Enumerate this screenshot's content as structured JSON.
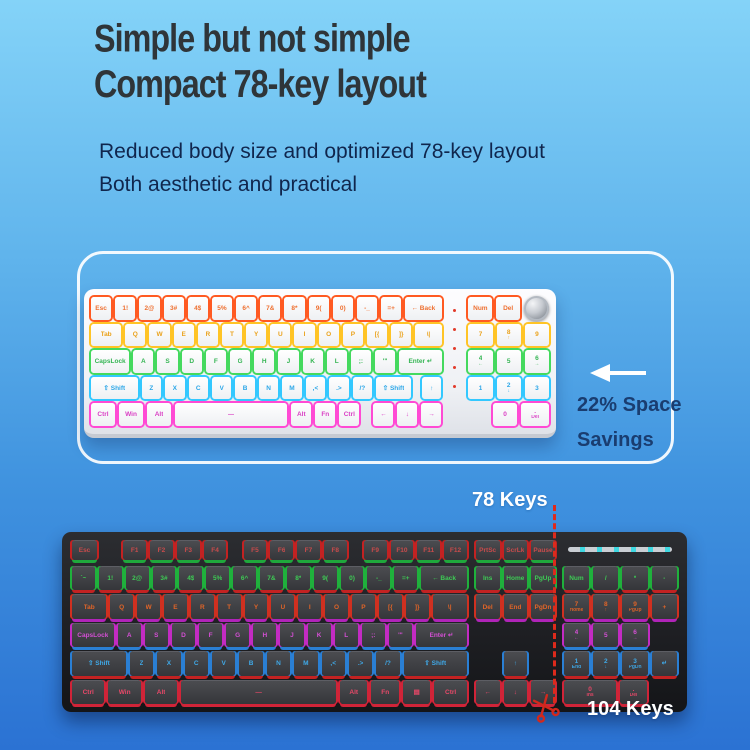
{
  "header": {
    "title_line1": "Simple but not simple",
    "title_line2": "Compact 78-key layout",
    "subtitle_line1": "Reduced body size and optimized 78-key layout",
    "subtitle_line2": "Both aesthetic and practical"
  },
  "panel": {
    "savings_line1": "22% Space",
    "savings_line2": "Savings",
    "arrow_color": "#ffffff"
  },
  "labels": {
    "keys78": "78 Keys",
    "keys104": "104 Keys",
    "cut_line_color": "#dd2a1c"
  },
  "white_keyboard": {
    "description": "compact 78-key white RGB keyboard",
    "blocks": [
      {
        "w": 14.8,
        "rows": [
          {
            "ring": "#ff5a22",
            "legend": "#ef7030",
            "keys": [
              {
                "t": "Esc"
              },
              {
                "t": "1!"
              },
              {
                "t": "2@"
              },
              {
                "t": "3#"
              },
              {
                "t": "4$"
              },
              {
                "t": "5%"
              },
              {
                "t": "6^"
              },
              {
                "t": "7&"
              },
              {
                "t": "8*"
              },
              {
                "t": "9("
              },
              {
                "t": "0)"
              },
              {
                "t": "-_"
              },
              {
                "t": "=+"
              },
              {
                "t": "← Back",
                "w": 1.8
              }
            ]
          },
          {
            "ring": "#ffc426",
            "legend": "#eaa21c",
            "keys": [
              {
                "t": "Tab",
                "w": 1.5
              },
              {
                "t": "Q"
              },
              {
                "t": "W"
              },
              {
                "t": "E"
              },
              {
                "t": "R"
              },
              {
                "t": "T"
              },
              {
                "t": "Y"
              },
              {
                "t": "U"
              },
              {
                "t": "I"
              },
              {
                "t": "O"
              },
              {
                "t": "P"
              },
              {
                "t": "[{"
              },
              {
                "t": "]}"
              },
              {
                "t": "\\|",
                "w": 1.3
              }
            ]
          },
          {
            "ring": "#44d95e",
            "legend": "#35b554",
            "keys": [
              {
                "t": "CapsLock",
                "w": 1.9
              },
              {
                "t": "A"
              },
              {
                "t": "S"
              },
              {
                "t": "D"
              },
              {
                "t": "F"
              },
              {
                "t": "G"
              },
              {
                "t": "H"
              },
              {
                "t": "J"
              },
              {
                "t": "K"
              },
              {
                "t": "L"
              },
              {
                "t": ";:"
              },
              {
                "t": "'\""
              },
              {
                "t": "Enter ↵",
                "w": 2.1
              }
            ]
          },
          {
            "ring": "#33c8ff",
            "legend": "#2da7e8",
            "keys": [
              {
                "t": "⇧ Shift",
                "w": 2.4
              },
              {
                "t": "Z"
              },
              {
                "t": "X"
              },
              {
                "t": "C"
              },
              {
                "t": "V"
              },
              {
                "t": "B"
              },
              {
                "t": "N"
              },
              {
                "t": "M"
              },
              {
                "t": ",<"
              },
              {
                "t": ".>"
              },
              {
                "t": "/?"
              },
              {
                "t": "⇧ Shift",
                "w": 1.8
              },
              {
                "sp": true,
                "w": 0.15
              },
              {
                "t": "↑"
              }
            ]
          },
          {
            "ring": "#ff4ad4",
            "legend": "#d93fc4",
            "keys": [
              {
                "t": "Ctrl",
                "w": 1.2
              },
              {
                "t": "Win",
                "w": 1.2
              },
              {
                "t": "Alt",
                "w": 1.2
              },
              {
                "t": "—",
                "w": 5.6
              },
              {
                "t": "Alt"
              },
              {
                "t": "Fn"
              },
              {
                "t": "Ctrl"
              },
              {
                "sp": true,
                "w": 0.3
              },
              {
                "t": "←"
              },
              {
                "t": "↓"
              },
              {
                "t": "→"
              }
            ]
          }
        ]
      },
      {
        "dots": true
      },
      {
        "w": 3.4,
        "rows": [
          {
            "ring": "#ff5a22",
            "legend": "#ef7030",
            "keys": [
              {
                "t": "Num"
              },
              {
                "t": "Del"
              },
              {
                "knob": true
              }
            ]
          },
          {
            "ring": "#ffc426",
            "legend": "#eaa21c",
            "keys": [
              {
                "t": "7"
              },
              {
                "t": "8",
                "s": "↑"
              },
              {
                "t": "9"
              }
            ]
          },
          {
            "ring": "#44d95e",
            "legend": "#35b554",
            "keys": [
              {
                "t": "4",
                "s": "←"
              },
              {
                "t": "5"
              },
              {
                "t": "6",
                "s": "→"
              }
            ]
          },
          {
            "ring": "#33c8ff",
            "legend": "#2da7e8",
            "keys": [
              {
                "t": "1"
              },
              {
                "t": "2",
                "s": "↓"
              },
              {
                "t": "3"
              }
            ]
          },
          {
            "ring": "#ff4ad4",
            "legend": "#d93fc4",
            "keys": [
              {
                "sp": true,
                "w": 0.85
              },
              {
                "t": "0"
              },
              {
                "t": ".",
                "s": "Del",
                "w": 1.15
              }
            ]
          }
        ]
      }
    ]
  },
  "black_keyboard": {
    "description": "full-size 104-key black RGB keyboard",
    "blocks": [
      {
        "w": 15,
        "rows": [
          {
            "fn": true,
            "side": "#c32222",
            "bottom": "#1fa83c",
            "legend": "#c94b4b",
            "keys": [
              {
                "t": "Esc",
                "w": 1.1
              },
              {
                "sp": true,
                "w": 0.8
              },
              {
                "t": "F1"
              },
              {
                "t": "F2"
              },
              {
                "t": "F3"
              },
              {
                "t": "F4"
              },
              {
                "sp": true,
                "w": 0.4
              },
              {
                "t": "F5"
              },
              {
                "t": "F6"
              },
              {
                "t": "F7"
              },
              {
                "t": "F8"
              },
              {
                "sp": true,
                "w": 0.4
              },
              {
                "t": "F9"
              },
              {
                "t": "F10"
              },
              {
                "t": "F11"
              },
              {
                "t": "F12"
              }
            ]
          },
          {
            "side": "#1fb13c",
            "bottom": "#c32222",
            "legend": "#3ecb55",
            "keys": [
              {
                "t": "`~"
              },
              {
                "t": "1!"
              },
              {
                "t": "2@"
              },
              {
                "t": "3#"
              },
              {
                "t": "4$"
              },
              {
                "t": "5%"
              },
              {
                "t": "6^"
              },
              {
                "t": "7&"
              },
              {
                "t": "8*"
              },
              {
                "t": "9("
              },
              {
                "t": "0)"
              },
              {
                "t": "-_"
              },
              {
                "t": "=+"
              },
              {
                "t": "← Back",
                "w": 2
              }
            ]
          },
          {
            "side": "#d03020",
            "bottom": "#b024b8",
            "legend": "#e06428",
            "keys": [
              {
                "t": "Tab",
                "w": 1.5
              },
              {
                "t": "Q"
              },
              {
                "t": "W"
              },
              {
                "t": "E"
              },
              {
                "t": "R"
              },
              {
                "t": "T"
              },
              {
                "t": "Y"
              },
              {
                "t": "U"
              },
              {
                "t": "I"
              },
              {
                "t": "O"
              },
              {
                "t": "P"
              },
              {
                "t": "[{"
              },
              {
                "t": "]}"
              },
              {
                "t": "\\|",
                "w": 1.5
              }
            ]
          },
          {
            "side": "#c32bc3",
            "bottom": "#2a7fd4",
            "legend": "#d44fd4",
            "keys": [
              {
                "t": "CapsLock",
                "w": 1.8
              },
              {
                "t": "A"
              },
              {
                "t": "S"
              },
              {
                "t": "D"
              },
              {
                "t": "F"
              },
              {
                "t": "G"
              },
              {
                "t": "H"
              },
              {
                "t": "J"
              },
              {
                "t": "K"
              },
              {
                "t": "L"
              },
              {
                "t": ";:"
              },
              {
                "t": "'\""
              },
              {
                "t": "Enter ↵",
                "w": 2.2
              }
            ]
          },
          {
            "side": "#2a7fd4",
            "bottom": "#c32222",
            "legend": "#3fa9e8",
            "keys": [
              {
                "t": "⇧ Shift",
                "w": 2.3
              },
              {
                "t": "Z"
              },
              {
                "t": "X"
              },
              {
                "t": "C"
              },
              {
                "t": "V"
              },
              {
                "t": "B"
              },
              {
                "t": "N"
              },
              {
                "t": "M"
              },
              {
                "t": ",<"
              },
              {
                "t": ".>"
              },
              {
                "t": "/?"
              },
              {
                "t": "⇧ Shift",
                "w": 2.7
              }
            ]
          },
          {
            "side": "#d02438",
            "bottom": "#d02438",
            "legend": "#e84868",
            "keys": [
              {
                "t": "Ctrl",
                "w": 1.3
              },
              {
                "t": "Win",
                "w": 1.3
              },
              {
                "t": "Alt",
                "w": 1.3
              },
              {
                "t": "—",
                "w": 6.2
              },
              {
                "t": "Alt",
                "w": 1.1
              },
              {
                "t": "Fn",
                "w": 1.1
              },
              {
                "t": "▤",
                "w": 1.1
              },
              {
                "t": "Ctrl",
                "w": 1.3
              }
            ]
          }
        ]
      },
      {
        "w": 3,
        "rows": [
          {
            "fn": true,
            "side": "#c32222",
            "bottom": "#1fa83c",
            "legend": "#c94b4b",
            "keys": [
              {
                "t": "PrtSc"
              },
              {
                "t": "ScrLk"
              },
              {
                "t": "Pause"
              }
            ]
          },
          {
            "side": "#1fb13c",
            "bottom": "#c32222",
            "legend": "#3ecb55",
            "keys": [
              {
                "t": "Ins"
              },
              {
                "t": "Home"
              },
              {
                "t": "PgUp"
              }
            ]
          },
          {
            "side": "#d03020",
            "bottom": "#b024b8",
            "legend": "#e06428",
            "keys": [
              {
                "t": "Del"
              },
              {
                "t": "End"
              },
              {
                "t": "PgDn"
              }
            ]
          },
          {
            "side": "#c32bc3",
            "bottom": "#2a7fd4",
            "legend": "#d44fd4",
            "keys": [
              {
                "sp": true,
                "w": 3
              }
            ]
          },
          {
            "side": "#2a7fd4",
            "bottom": "#c32222",
            "legend": "#3fa9e8",
            "keys": [
              {
                "sp": true
              },
              {
                "t": "↑"
              },
              {
                "sp": true
              }
            ]
          },
          {
            "side": "#d02438",
            "bottom": "#d02438",
            "legend": "#e84868",
            "keys": [
              {
                "t": "←"
              },
              {
                "t": "↓"
              },
              {
                "t": "→"
              }
            ]
          }
        ]
      },
      {
        "w": 4.3,
        "rows": [
          {
            "fn": true,
            "led": true,
            "keys": [
              {
                "led": true,
                "w": 4
              }
            ]
          },
          {
            "side": "#1fb13c",
            "bottom": "#c32222",
            "legend": "#3ecb55",
            "keys": [
              {
                "t": "Num"
              },
              {
                "t": "/"
              },
              {
                "t": "*"
              },
              {
                "t": "-"
              }
            ]
          },
          {
            "side": "#d03020",
            "bottom": "#b024b8",
            "legend": "#e06428",
            "keys": [
              {
                "t": "7",
                "s": "Home"
              },
              {
                "t": "8",
                "s": "↑"
              },
              {
                "t": "9",
                "s": "PgUp"
              },
              {
                "t": "+"
              }
            ]
          },
          {
            "side": "#c32bc3",
            "bottom": "#2a7fd4",
            "legend": "#d44fd4",
            "keys": [
              {
                "t": "4",
                "s": "←"
              },
              {
                "t": "5"
              },
              {
                "t": "6",
                "s": "→"
              },
              {
                "sp": true
              }
            ]
          },
          {
            "side": "#2a7fd4",
            "bottom": "#c32222",
            "legend": "#3fa9e8",
            "keys": [
              {
                "t": "1",
                "s": "End"
              },
              {
                "t": "2",
                "s": "↓"
              },
              {
                "t": "3",
                "s": "PgDn"
              },
              {
                "t": "↵"
              }
            ]
          },
          {
            "side": "#d02438",
            "bottom": "#d02438",
            "legend": "#e84868",
            "keys": [
              {
                "t": "0",
                "s": "Ins",
                "w": 2
              },
              {
                "t": ".",
                "s": "Del"
              },
              {
                "sp": true
              }
            ]
          }
        ]
      }
    ]
  }
}
